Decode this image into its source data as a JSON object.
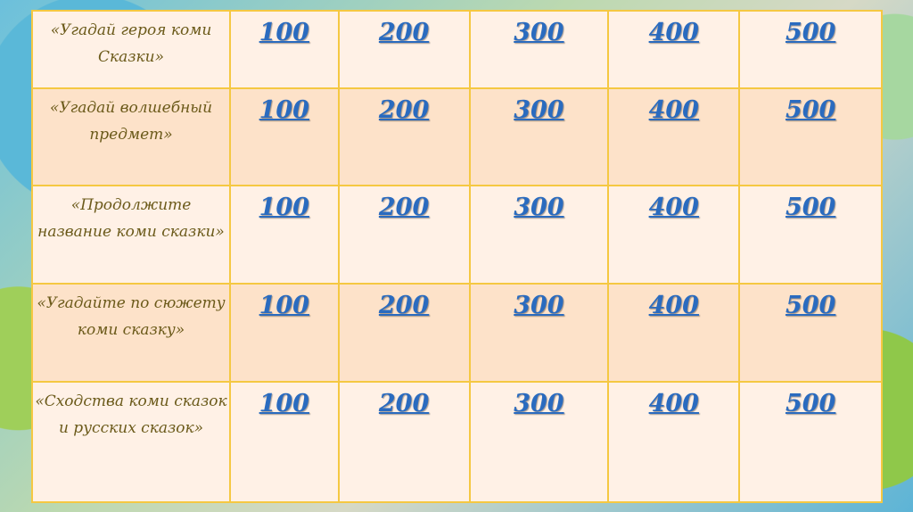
{
  "categories": [
    "«Угадай героя коми Сказки»",
    "«Угадай волшебный предмет»",
    "«Продолжите название коми сказки»",
    "«Угадайте по сюжету коми сказку»",
    "«Сходства коми сказок и русских сказок»"
  ],
  "values": [
    "100",
    "200",
    "300",
    "400",
    "500"
  ],
  "colors": {
    "border": "#f5c842",
    "category_text": "#6b5a1a",
    "value_link": "#2a6bbf",
    "row_light": "#fff1e6",
    "row_dark": "#fde2c9"
  }
}
